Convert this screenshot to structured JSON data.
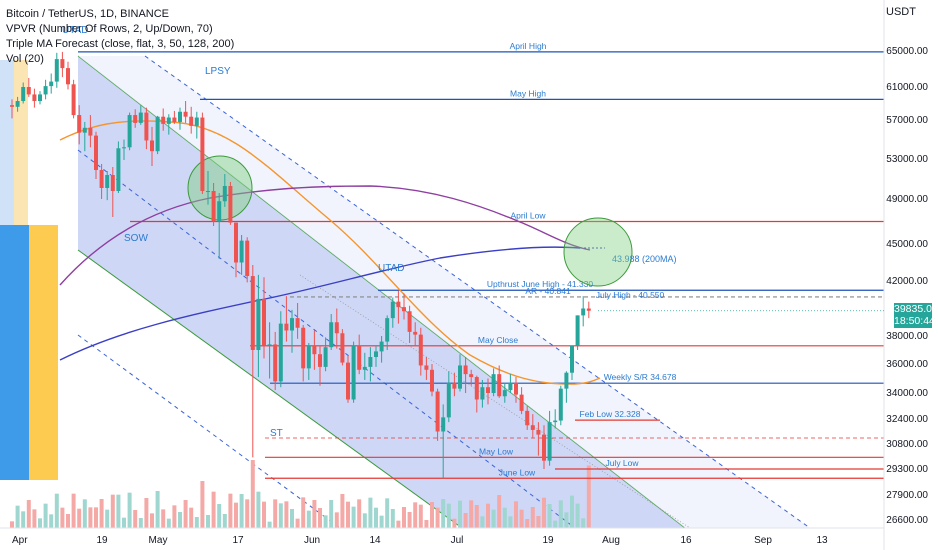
{
  "header": {
    "title": "Bitcoin / TetherUS, 1D, BINANCE",
    "indicators": [
      "VPVR (Number Of Rows, 2, Up/Down, 70)",
      "Triple MA Forecast (close, flat, 3, 50, 128, 200)",
      "Vol (20)"
    ],
    "currency": "USDT"
  },
  "current_price": {
    "value": "39835.01",
    "countdown": "18:50:44"
  },
  "colors": {
    "up": "#26a69a",
    "down": "#ef5350",
    "blue_line": "#1e53b8",
    "red_line": "#e53935",
    "ma50": "#f5952c",
    "ma128": "#8e3fa0",
    "ma200": "#3b3fc4",
    "channel_fill": "#c5d0f5",
    "channel_border": "#3c9a3c",
    "annotation": "#2b7bd0"
  },
  "chart_data": {
    "type": "candlestick",
    "title": "Bitcoin / TetherUS, 1D, BINANCE",
    "y_axis": {
      "ticks": [
        "65000.00",
        "61000.00",
        "57000.00",
        "53000.00",
        "49000.00",
        "45000.00",
        "42000.00",
        "38000.00",
        "36000.00",
        "34000.00",
        "32400.00",
        "30800.00",
        "29300.00",
        "27900.00",
        "26600.00"
      ]
    },
    "x_axis": {
      "ticks": [
        "Apr",
        "19",
        "May",
        "17",
        "Jun",
        "14",
        "Jul",
        "19",
        "Aug",
        "16",
        "Sep",
        "13"
      ]
    },
    "candles_ohlc": [
      [
        58800,
        59500,
        57200,
        58600
      ],
      [
        58600,
        59800,
        58000,
        59300
      ],
      [
        59300,
        61500,
        59000,
        61000
      ],
      [
        61000,
        62000,
        59800,
        60100
      ],
      [
        60100,
        60800,
        58500,
        59300
      ],
      [
        59300,
        60500,
        58900,
        60100
      ],
      [
        60100,
        61800,
        59500,
        61100
      ],
      [
        61100,
        62500,
        60200,
        61600
      ],
      [
        61600,
        64800,
        60900,
        64100
      ],
      [
        64100,
        64900,
        62100,
        63100
      ],
      [
        63100,
        63800,
        60700,
        61300
      ],
      [
        61300,
        61800,
        57200,
        57600
      ],
      [
        57600,
        58800,
        54500,
        55700
      ],
      [
        55700,
        56800,
        53800,
        56200
      ],
      [
        56200,
        57600,
        54200,
        55400
      ],
      [
        55400,
        55800,
        51000,
        51900
      ],
      [
        51900,
        52500,
        49000,
        50100
      ],
      [
        50100,
        51800,
        48900,
        51400
      ],
      [
        51400,
        52200,
        47400,
        49800
      ],
      [
        49800,
        54800,
        49600,
        54100
      ],
      [
        54100,
        55000,
        52900,
        54200
      ],
      [
        54200,
        57900,
        53900,
        57600
      ],
      [
        57600,
        58300,
        56200,
        56700
      ],
      [
        56700,
        58800,
        56500,
        57900
      ],
      [
        57900,
        58500,
        54000,
        54900
      ],
      [
        54900,
        56300,
        52300,
        53800
      ],
      [
        53800,
        57500,
        53500,
        57400
      ],
      [
        57400,
        58400,
        55900,
        56600
      ],
      [
        56600,
        57700,
        55500,
        57300
      ],
      [
        57300,
        58100,
        56600,
        56800
      ],
      [
        56800,
        58500,
        56000,
        58000
      ],
      [
        58000,
        59300,
        56700,
        57400
      ],
      [
        57400,
        58600,
        55600,
        56400
      ],
      [
        56400,
        58000,
        55100,
        57300
      ],
      [
        57300,
        57900,
        49500,
        49800
      ],
      [
        49800,
        51800,
        48500,
        49800
      ],
      [
        49800,
        50600,
        46600,
        47000
      ],
      [
        47000,
        49600,
        43800,
        48800
      ],
      [
        48800,
        51500,
        48300,
        50300
      ],
      [
        50300,
        50700,
        46700,
        46900
      ],
      [
        46900,
        46900,
        42300,
        43500
      ],
      [
        43500,
        45800,
        42500,
        45300
      ],
      [
        45300,
        45600,
        41900,
        42400
      ],
      [
        42400,
        43300,
        30000,
        37000
      ],
      [
        37000,
        42500,
        35100,
        40700
      ],
      [
        40700,
        42300,
        36400,
        37300
      ],
      [
        37300,
        39000,
        35000,
        37400
      ],
      [
        37400,
        38300,
        34200,
        34800
      ],
      [
        34800,
        39800,
        34400,
        38900
      ],
      [
        38900,
        40900,
        37600,
        38400
      ],
      [
        38400,
        39900,
        36800,
        39300
      ],
      [
        39300,
        40400,
        37800,
        38600
      ],
      [
        38600,
        38800,
        34800,
        35700
      ],
      [
        35700,
        37500,
        34900,
        37300
      ],
      [
        37300,
        38400,
        35600,
        36700
      ],
      [
        36700,
        37300,
        34500,
        35800
      ],
      [
        35800,
        37900,
        35500,
        37200
      ],
      [
        37200,
        39600,
        37000,
        39000
      ],
      [
        39000,
        40000,
        37100,
        38200
      ],
      [
        38200,
        38500,
        35900,
        36100
      ],
      [
        36100,
        36600,
        33400,
        33600
      ],
      [
        33600,
        37600,
        33400,
        37300
      ],
      [
        37300,
        38100,
        35300,
        35600
      ],
      [
        35600,
        36800,
        34900,
        35800
      ],
      [
        35800,
        37200,
        34800,
        36500
      ],
      [
        36500,
        37300,
        35800,
        36900
      ],
      [
        36900,
        38000,
        36100,
        37600
      ],
      [
        37600,
        39500,
        37000,
        39300
      ],
      [
        39300,
        40800,
        38600,
        40500
      ],
      [
        40500,
        41300,
        38900,
        40100
      ],
      [
        40100,
        41100,
        39200,
        39800
      ],
      [
        39800,
        40200,
        37500,
        38300
      ],
      [
        38300,
        39000,
        37300,
        38100
      ],
      [
        38100,
        38600,
        35200,
        35900
      ],
      [
        35900,
        36500,
        34900,
        35600
      ],
      [
        35600,
        36000,
        33800,
        34100
      ],
      [
        34100,
        34300,
        31000,
        31600
      ],
      [
        31600,
        33300,
        28800,
        32500
      ],
      [
        32500,
        35500,
        32200,
        34700
      ],
      [
        34700,
        35400,
        33800,
        34300
      ],
      [
        34300,
        36700,
        34100,
        35900
      ],
      [
        35900,
        36500,
        34000,
        35300
      ],
      [
        35300,
        35600,
        34500,
        35100
      ],
      [
        35100,
        35200,
        32800,
        33600
      ],
      [
        33600,
        34900,
        33100,
        34400
      ],
      [
        34400,
        35000,
        33300,
        34000
      ],
      [
        34000,
        35700,
        33800,
        35300
      ],
      [
        35300,
        35900,
        33700,
        33800
      ],
      [
        33800,
        34700,
        33400,
        34200
      ],
      [
        34200,
        35300,
        34000,
        34700
      ],
      [
        34700,
        35100,
        33400,
        33900
      ],
      [
        33900,
        34400,
        32700,
        32900
      ],
      [
        32900,
        33200,
        31700,
        32000
      ],
      [
        32000,
        32700,
        31200,
        31700
      ],
      [
        31700,
        32200,
        30100,
        31400
      ],
      [
        31400,
        32000,
        29300,
        29800
      ],
      [
        29800,
        32900,
        29500,
        32200
      ],
      [
        32200,
        33000,
        31800,
        32300
      ],
      [
        32300,
        34500,
        32000,
        34300
      ],
      [
        34300,
        35500,
        33400,
        35400
      ],
      [
        35400,
        37000,
        34900,
        37300
      ],
      [
        37300,
        39500,
        37000,
        39500
      ],
      [
        39500,
        40900,
        38700,
        40000
      ],
      [
        40000,
        40500,
        39300,
        39835
      ]
    ],
    "moving_averages": [
      {
        "name": "MA 50"
      },
      {
        "name": "MA 128"
      },
      {
        "name": "MA 200",
        "label": "43.988 (200MA)"
      }
    ],
    "horizontal_levels": [
      {
        "label": "April High",
        "value": 64900,
        "color": "blue"
      },
      {
        "label": "May High",
        "value": 59500,
        "color": "blue"
      },
      {
        "label": "April Low",
        "value": 47000,
        "color": "red"
      },
      {
        "label": "Upthrust June High - 41.330",
        "value": 41330,
        "color": "blue"
      },
      {
        "label": "AR - 40.841",
        "value": 40841,
        "color": "dashed"
      },
      {
        "label": "July High - 40.550",
        "value": 40550,
        "color": "none"
      },
      {
        "label": "May Close",
        "value": 37300,
        "color": "red"
      },
      {
        "label": "Weekly S/R 34.678",
        "value": 34678,
        "color": "blue"
      },
      {
        "label": "Feb Low 32.328",
        "value": 32328,
        "color": "red"
      },
      {
        "label": "May Low",
        "value": 30000,
        "color": "red"
      },
      {
        "label": "July Low",
        "value": 29300,
        "color": "red"
      },
      {
        "label": "June Low",
        "value": 28800,
        "color": "red"
      }
    ],
    "annotations": [
      "UTAD",
      "LPSY",
      "SOW",
      "UTAD",
      "ST"
    ]
  }
}
